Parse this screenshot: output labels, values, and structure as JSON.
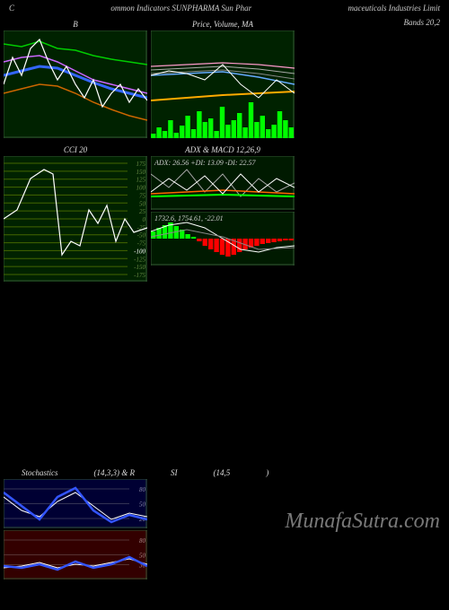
{
  "header": {
    "left": "C",
    "center": "ommon Indicators SUNPHARMA Sun Phar",
    "right": "maceuticals Industries Limit"
  },
  "bands_label": "Bands 20,2",
  "watermark": "MunafaSutra.com",
  "panel_b": {
    "title": "B",
    "bg": "#002200",
    "width": 160,
    "height": 120,
    "lines": {
      "green": {
        "color": "#00cc00",
        "width": 1.5,
        "pts": [
          [
            0,
            15
          ],
          [
            20,
            18
          ],
          [
            40,
            12
          ],
          [
            60,
            20
          ],
          [
            80,
            22
          ],
          [
            100,
            28
          ],
          [
            120,
            32
          ],
          [
            140,
            35
          ],
          [
            160,
            38
          ]
        ]
      },
      "violet": {
        "color": "#cc66ff",
        "width": 1.5,
        "pts": [
          [
            0,
            35
          ],
          [
            20,
            30
          ],
          [
            40,
            28
          ],
          [
            60,
            35
          ],
          [
            80,
            45
          ],
          [
            100,
            55
          ],
          [
            120,
            60
          ],
          [
            140,
            65
          ],
          [
            160,
            70
          ]
        ]
      },
      "blue": {
        "color": "#3366ff",
        "width": 3.0,
        "pts": [
          [
            0,
            50
          ],
          [
            20,
            45
          ],
          [
            40,
            40
          ],
          [
            60,
            42
          ],
          [
            80,
            50
          ],
          [
            100,
            58
          ],
          [
            120,
            65
          ],
          [
            140,
            70
          ],
          [
            160,
            75
          ]
        ]
      },
      "orange": {
        "color": "#cc6600",
        "width": 1.5,
        "pts": [
          [
            0,
            70
          ],
          [
            20,
            65
          ],
          [
            40,
            60
          ],
          [
            60,
            62
          ],
          [
            80,
            70
          ],
          [
            100,
            80
          ],
          [
            120,
            88
          ],
          [
            140,
            95
          ],
          [
            160,
            100
          ]
        ]
      },
      "white": {
        "color": "#ffffff",
        "width": 1.2,
        "pts": [
          [
            0,
            60
          ],
          [
            10,
            30
          ],
          [
            20,
            50
          ],
          [
            30,
            20
          ],
          [
            40,
            10
          ],
          [
            50,
            35
          ],
          [
            60,
            55
          ],
          [
            70,
            40
          ],
          [
            80,
            60
          ],
          [
            90,
            75
          ],
          [
            100,
            55
          ],
          [
            110,
            85
          ],
          [
            120,
            70
          ],
          [
            130,
            60
          ],
          [
            140,
            80
          ],
          [
            150,
            65
          ],
          [
            160,
            78
          ]
        ]
      }
    }
  },
  "panel_price": {
    "title": "Price, Volume, MA",
    "bg": "#002200",
    "width": 160,
    "height": 120,
    "lines": {
      "pink": {
        "color": "#ff99cc",
        "width": 1.2,
        "pts": [
          [
            0,
            40
          ],
          [
            40,
            38
          ],
          [
            80,
            36
          ],
          [
            120,
            38
          ],
          [
            160,
            42
          ]
        ]
      },
      "grey1": {
        "color": "#aaaaaa",
        "width": 1.0,
        "pts": [
          [
            0,
            44
          ],
          [
            40,
            42
          ],
          [
            80,
            40
          ],
          [
            120,
            43
          ],
          [
            160,
            48
          ]
        ]
      },
      "grey2": {
        "color": "#888888",
        "width": 1.0,
        "pts": [
          [
            0,
            48
          ],
          [
            40,
            46
          ],
          [
            80,
            44
          ],
          [
            120,
            48
          ],
          [
            160,
            54
          ]
        ]
      },
      "blue": {
        "color": "#66aaff",
        "width": 1.5,
        "pts": [
          [
            0,
            50
          ],
          [
            40,
            48
          ],
          [
            80,
            46
          ],
          [
            120,
            52
          ],
          [
            160,
            60
          ]
        ]
      },
      "orange": {
        "color": "#ffaa00",
        "width": 2.0,
        "pts": [
          [
            0,
            78
          ],
          [
            40,
            75
          ],
          [
            80,
            72
          ],
          [
            120,
            70
          ],
          [
            160,
            68
          ]
        ]
      },
      "white": {
        "color": "#ffffff",
        "width": 1.0,
        "pts": [
          [
            0,
            50
          ],
          [
            20,
            45
          ],
          [
            40,
            48
          ],
          [
            60,
            55
          ],
          [
            80,
            38
          ],
          [
            100,
            60
          ],
          [
            120,
            75
          ],
          [
            140,
            55
          ],
          [
            160,
            70
          ]
        ]
      }
    },
    "volume": {
      "color": "#00ff00",
      "bars": [
        5,
        12,
        8,
        20,
        6,
        14,
        25,
        10,
        30,
        18,
        22,
        8,
        35,
        15,
        20,
        28,
        12,
        40,
        18,
        25,
        10,
        15,
        30,
        20,
        12
      ]
    }
  },
  "panel_cci": {
    "title": "CCI 20",
    "bg": "#002200",
    "width": 160,
    "height": 140,
    "grid_color": "#446600",
    "levels": [
      175,
      150,
      125,
      100,
      75,
      50,
      25,
      0,
      -25,
      -50,
      -75,
      -100,
      -125,
      -150,
      -175
    ],
    "highlight_level": -100,
    "line": {
      "color": "#ffffff",
      "width": 1.2,
      "pts": [
        [
          0,
          70
        ],
        [
          15,
          60
        ],
        [
          30,
          25
        ],
        [
          45,
          15
        ],
        [
          55,
          20
        ],
        [
          65,
          110
        ],
        [
          75,
          95
        ],
        [
          85,
          100
        ],
        [
          95,
          60
        ],
        [
          105,
          75
        ],
        [
          115,
          55
        ],
        [
          125,
          95
        ],
        [
          135,
          70
        ],
        [
          145,
          85
        ],
        [
          160,
          80
        ]
      ]
    }
  },
  "panel_adx": {
    "title": "ADX  & MACD 12,26,9",
    "top": {
      "bg": "#001a00",
      "height": 60,
      "text": "ADX: 26.56  +DI: 13.09 -DI: 22.57",
      "text_color": "#cccccc",
      "lines": {
        "grey": {
          "color": "#aaaaaa",
          "width": 1.0,
          "pts": [
            [
              0,
              20
            ],
            [
              20,
              35
            ],
            [
              40,
              15
            ],
            [
              60,
              40
            ],
            [
              80,
              20
            ],
            [
              100,
              45
            ],
            [
              120,
              25
            ],
            [
              140,
              40
            ],
            [
              160,
              30
            ]
          ]
        },
        "green": {
          "color": "#00ff00",
          "width": 2.0,
          "pts": [
            [
              0,
              45
            ],
            [
              40,
              44
            ],
            [
              80,
              43
            ],
            [
              120,
              44
            ],
            [
              160,
              45
            ]
          ]
        },
        "orange": {
          "color": "#ff6600",
          "width": 1.5,
          "pts": [
            [
              0,
              42
            ],
            [
              40,
              40
            ],
            [
              80,
              38
            ],
            [
              120,
              40
            ],
            [
              160,
              42
            ]
          ]
        },
        "white": {
          "color": "#ffffff",
          "width": 1.0,
          "pts": [
            [
              0,
              40
            ],
            [
              20,
              25
            ],
            [
              40,
              38
            ],
            [
              60,
              22
            ],
            [
              80,
              42
            ],
            [
              100,
              20
            ],
            [
              120,
              40
            ],
            [
              140,
              25
            ],
            [
              160,
              35
            ]
          ]
        }
      }
    },
    "bottom": {
      "bg": "#001a00",
      "height": 60,
      "text": "1732.6, 1754.61, -22.01",
      "text_color": "#cccccc",
      "hist_pos_color": "#00ff00",
      "hist_neg_color": "#ff0000",
      "hist": [
        8,
        12,
        15,
        18,
        14,
        10,
        5,
        2,
        -3,
        -8,
        -12,
        -15,
        -18,
        -20,
        -18,
        -15,
        -12,
        -10,
        -8,
        -6,
        -5,
        -4,
        -3,
        -2,
        -2
      ],
      "lines": {
        "white": {
          "color": "#ffffff",
          "width": 1.0,
          "pts": [
            [
              0,
              22
            ],
            [
              20,
              15
            ],
            [
              40,
              12
            ],
            [
              60,
              18
            ],
            [
              80,
              30
            ],
            [
              100,
              42
            ],
            [
              120,
              45
            ],
            [
              140,
              40
            ],
            [
              160,
              38
            ]
          ]
        },
        "grey": {
          "color": "#888888",
          "width": 1.0,
          "pts": [
            [
              0,
              28
            ],
            [
              40,
              20
            ],
            [
              80,
              28
            ],
            [
              120,
              42
            ],
            [
              160,
              40
            ]
          ]
        }
      }
    }
  },
  "panel_stoch": {
    "title_left": "Stochastics",
    "title_mid": "(14,3,3) & R",
    "title_mid2": "SI",
    "title_right": "(14,5",
    "title_end": ")",
    "top": {
      "bg": "#000033",
      "height": 55,
      "grid_levels": [
        80,
        50,
        20
      ],
      "line_blue": {
        "color": "#3355ff",
        "width": 2.5,
        "pts": [
          [
            0,
            15
          ],
          [
            20,
            30
          ],
          [
            40,
            45
          ],
          [
            60,
            20
          ],
          [
            80,
            10
          ],
          [
            100,
            35
          ],
          [
            120,
            48
          ],
          [
            140,
            40
          ],
          [
            160,
            45
          ]
        ]
      },
      "line_white": {
        "color": "#ffffff",
        "width": 1.0,
        "pts": [
          [
            0,
            20
          ],
          [
            20,
            35
          ],
          [
            40,
            42
          ],
          [
            60,
            25
          ],
          [
            80,
            15
          ],
          [
            100,
            30
          ],
          [
            120,
            45
          ],
          [
            140,
            38
          ],
          [
            160,
            42
          ]
        ]
      }
    },
    "bottom": {
      "bg": "#330000",
      "height": 55,
      "grid_levels": [
        80,
        50,
        30
      ],
      "line_blue": {
        "color": "#3355ff",
        "width": 2.5,
        "pts": [
          [
            0,
            40
          ],
          [
            20,
            42
          ],
          [
            40,
            38
          ],
          [
            60,
            44
          ],
          [
            80,
            35
          ],
          [
            100,
            42
          ],
          [
            120,
            38
          ],
          [
            140,
            30
          ],
          [
            160,
            40
          ]
        ]
      },
      "line_white": {
        "color": "#ffffff",
        "width": 1.0,
        "pts": [
          [
            0,
            42
          ],
          [
            20,
            40
          ],
          [
            40,
            36
          ],
          [
            60,
            42
          ],
          [
            80,
            38
          ],
          [
            100,
            40
          ],
          [
            120,
            36
          ],
          [
            140,
            32
          ],
          [
            160,
            38
          ]
        ]
      }
    }
  }
}
